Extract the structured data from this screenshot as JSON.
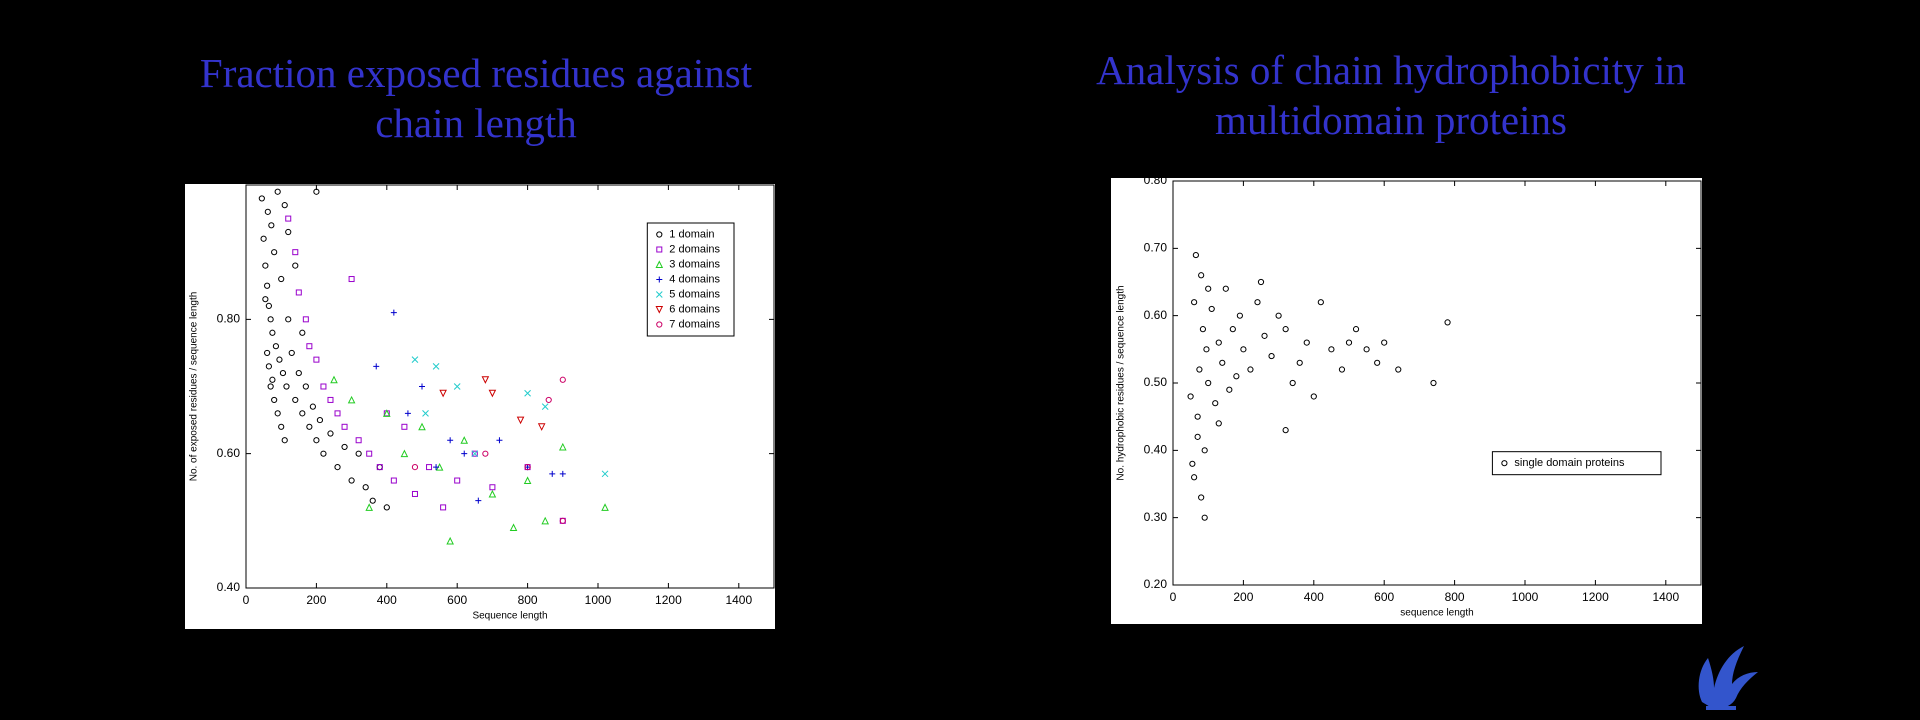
{
  "chart_data": [
    {
      "type": "scatter",
      "title": "Fraction exposed residues against chain length",
      "x_label": "Sequence length",
      "y_label": "No. of exposed residues / sequence length",
      "xlim": [
        0,
        1500
      ],
      "xticks": [
        0,
        200,
        400,
        600,
        800,
        1000,
        1200,
        1400
      ],
      "ylim": [
        0.4,
        1.0
      ],
      "yticks": [
        {
          "value": 0.4,
          "label": "0.40"
        },
        {
          "value": 0.6,
          "label": "0.60"
        },
        {
          "value": 0.8,
          "label": "0.80"
        }
      ],
      "grid": false,
      "legend": "upper right",
      "series": [
        {
          "name": "1 domain",
          "color": "#000000",
          "marker": "circle",
          "x": [
            45,
            50,
            55,
            60,
            62,
            65,
            70,
            72,
            75,
            80,
            85,
            90,
            95,
            100,
            105,
            110,
            115,
            120,
            130,
            140,
            150,
            160,
            170,
            180,
            190,
            200,
            210,
            220,
            240,
            260,
            280,
            300,
            320,
            340,
            360,
            380,
            400,
            60,
            70,
            80,
            90,
            100,
            110,
            55,
            65,
            75,
            120,
            140,
            160,
            200
          ],
          "values": [
            0.98,
            0.92,
            0.88,
            0.85,
            0.96,
            0.82,
            0.8,
            0.94,
            0.78,
            0.9,
            0.76,
            0.99,
            0.74,
            0.86,
            0.72,
            0.97,
            0.7,
            0.8,
            0.75,
            0.68,
            0.72,
            0.66,
            0.7,
            0.64,
            0.67,
            0.62,
            0.65,
            0.6,
            0.63,
            0.58,
            0.61,
            0.56,
            0.6,
            0.55,
            0.53,
            0.58,
            0.52,
            0.75,
            0.7,
            0.68,
            0.66,
            0.64,
            0.62,
            0.83,
            0.73,
            0.71,
            0.93,
            0.88,
            0.78,
            0.99
          ]
        },
        {
          "name": "2 domains",
          "color": "#9900cc",
          "marker": "square",
          "x": [
            120,
            140,
            150,
            170,
            180,
            200,
            220,
            240,
            260,
            280,
            300,
            320,
            350,
            380,
            400,
            420,
            450,
            480,
            520,
            560,
            600,
            650,
            700,
            800,
            900
          ],
          "values": [
            0.95,
            0.9,
            0.84,
            0.8,
            0.76,
            0.74,
            0.7,
            0.68,
            0.66,
            0.64,
            0.86,
            0.62,
            0.6,
            0.58,
            0.66,
            0.56,
            0.64,
            0.54,
            0.58,
            0.52,
            0.56,
            0.6,
            0.55,
            0.58,
            0.5
          ]
        },
        {
          "name": "3 domains",
          "color": "#22cc22",
          "marker": "triangle",
          "x": [
            250,
            300,
            350,
            400,
            450,
            500,
            550,
            580,
            620,
            700,
            760,
            800,
            850,
            900,
            1020
          ],
          "values": [
            0.71,
            0.68,
            0.52,
            0.66,
            0.6,
            0.64,
            0.58,
            0.47,
            0.62,
            0.54,
            0.49,
            0.56,
            0.5,
            0.61,
            0.52
          ]
        },
        {
          "name": "4 domains",
          "color": "#0000cc",
          "marker": "plus",
          "x": [
            370,
            420,
            460,
            500,
            540,
            580,
            620,
            660,
            720,
            800,
            870,
            900
          ],
          "values": [
            0.73,
            0.81,
            0.66,
            0.7,
            0.58,
            0.62,
            0.6,
            0.53,
            0.62,
            0.58,
            0.57,
            0.57
          ]
        },
        {
          "name": "5 domains",
          "color": "#22cccc",
          "marker": "x",
          "x": [
            480,
            510,
            540,
            600,
            650,
            800,
            850,
            1020
          ],
          "values": [
            0.74,
            0.66,
            0.73,
            0.7,
            0.6,
            0.69,
            0.67,
            0.57
          ]
        },
        {
          "name": "6 domains",
          "color": "#cc0000",
          "marker": "triangle-down",
          "x": [
            560,
            680,
            700,
            780,
            840
          ],
          "values": [
            0.69,
            0.71,
            0.69,
            0.65,
            0.64
          ]
        },
        {
          "name": "7 domains",
          "color": "#cc0066",
          "marker": "circle",
          "x": [
            480,
            680,
            800,
            860,
            900,
            900
          ],
          "values": [
            0.58,
            0.6,
            0.58,
            0.68,
            0.71,
            0.5
          ]
        }
      ]
    },
    {
      "type": "scatter",
      "title": "Analysis of chain hydrophobicity in multidomain proteins",
      "x_label": "sequence length",
      "y_label": "No. hydrophobic residues / sequence length",
      "xlim": [
        0,
        1500
      ],
      "xticks": [
        0,
        200,
        400,
        600,
        800,
        1000,
        1200,
        1400
      ],
      "ylim": [
        0.2,
        0.8
      ],
      "yticks": [
        {
          "value": 0.2,
          "label": "0.20"
        },
        {
          "value": 0.3,
          "label": "0.30"
        },
        {
          "value": 0.4,
          "label": "0.40"
        },
        {
          "value": 0.5,
          "label": "0.50"
        },
        {
          "value": 0.6,
          "label": "0.60"
        },
        {
          "value": 0.7,
          "label": "0.70"
        },
        {
          "value": 0.8,
          "label": "0.80"
        }
      ],
      "grid": false,
      "legend": "center right",
      "series": [
        {
          "name": "single domain proteins",
          "color": "#000000",
          "marker": "circle",
          "x": [
            50,
            55,
            60,
            65,
            70,
            75,
            80,
            85,
            90,
            95,
            100,
            110,
            120,
            130,
            140,
            150,
            160,
            170,
            180,
            190,
            200,
            220,
            240,
            260,
            280,
            300,
            320,
            340,
            360,
            380,
            400,
            420,
            450,
            480,
            500,
            520,
            550,
            580,
            600,
            640,
            740,
            780,
            60,
            70,
            80,
            90,
            100,
            130,
            250,
            320
          ],
          "values": [
            0.48,
            0.38,
            0.62,
            0.69,
            0.45,
            0.52,
            0.33,
            0.58,
            0.3,
            0.55,
            0.5,
            0.61,
            0.47,
            0.56,
            0.53,
            0.64,
            0.49,
            0.58,
            0.51,
            0.6,
            0.55,
            0.52,
            0.62,
            0.57,
            0.54,
            0.6,
            0.58,
            0.5,
            0.53,
            0.56,
            0.48,
            0.62,
            0.55,
            0.52,
            0.56,
            0.58,
            0.55,
            0.53,
            0.56,
            0.52,
            0.5,
            0.59,
            0.36,
            0.42,
            0.66,
            0.4,
            0.64,
            0.44,
            0.65,
            0.43
          ]
        }
      ]
    }
  ]
}
